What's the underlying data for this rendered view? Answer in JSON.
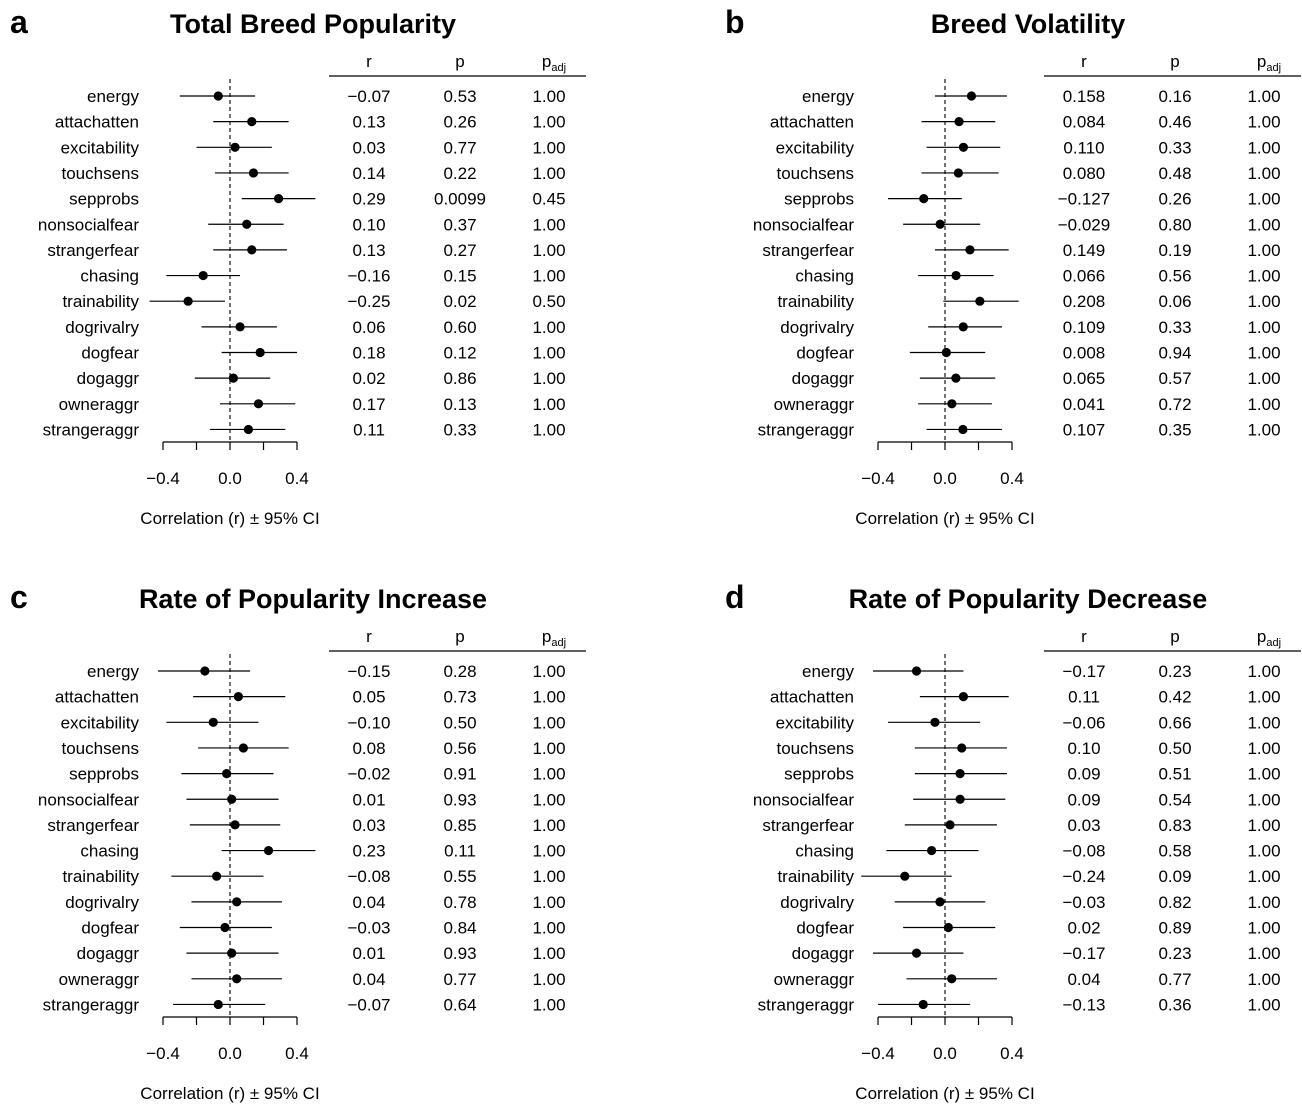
{
  "chart_data": [
    {
      "type": "forest",
      "panel_letter": "a",
      "title": "Total Breed Popularity",
      "xlabel": "Correlation (r) ± 95% CI",
      "xlim": [
        -0.4,
        0.4
      ],
      "xticks": [
        "−0.4",
        "0.0",
        "0.4"
      ],
      "columns": [
        "r",
        "p",
        "p_adj"
      ],
      "headers": {
        "r": "r",
        "p": "p",
        "padj_main": "p",
        "padj_sub": "adj"
      },
      "rows": [
        {
          "label": "energy",
          "r": -0.07,
          "lo": -0.3,
          "hi": 0.15,
          "r_text": "−0.07",
          "p_text": "0.53",
          "padj_text": "1.00"
        },
        {
          "label": "attachatten",
          "r": 0.13,
          "lo": -0.1,
          "hi": 0.35,
          "r_text": "0.13",
          "p_text": "0.26",
          "padj_text": "1.00"
        },
        {
          "label": "excitability",
          "r": 0.03,
          "lo": -0.2,
          "hi": 0.25,
          "r_text": "0.03",
          "p_text": "0.77",
          "padj_text": "1.00"
        },
        {
          "label": "touchsens",
          "r": 0.14,
          "lo": -0.09,
          "hi": 0.35,
          "r_text": "0.14",
          "p_text": "0.22",
          "padj_text": "1.00"
        },
        {
          "label": "sepprobs",
          "r": 0.29,
          "lo": 0.07,
          "hi": 0.51,
          "r_text": "0.29",
          "p_text": "0.0099",
          "padj_text": "0.45"
        },
        {
          "label": "nonsocialfear",
          "r": 0.1,
          "lo": -0.13,
          "hi": 0.32,
          "r_text": "0.10",
          "p_text": "0.37",
          "padj_text": "1.00"
        },
        {
          "label": "strangerfear",
          "r": 0.13,
          "lo": -0.1,
          "hi": 0.34,
          "r_text": "0.13",
          "p_text": "0.27",
          "padj_text": "1.00"
        },
        {
          "label": "chasing",
          "r": -0.16,
          "lo": -0.38,
          "hi": 0.06,
          "r_text": "−0.16",
          "p_text": "0.15",
          "padj_text": "1.00"
        },
        {
          "label": "trainability",
          "r": -0.25,
          "lo": -0.48,
          "hi": -0.03,
          "r_text": "−0.25",
          "p_text": "0.02",
          "padj_text": "0.50"
        },
        {
          "label": "dogrivalry",
          "r": 0.06,
          "lo": -0.17,
          "hi": 0.28,
          "r_text": "0.06",
          "p_text": "0.60",
          "padj_text": "1.00"
        },
        {
          "label": "dogfear",
          "r": 0.18,
          "lo": -0.05,
          "hi": 0.4,
          "r_text": "0.18",
          "p_text": "0.12",
          "padj_text": "1.00"
        },
        {
          "label": "dogaggr",
          "r": 0.02,
          "lo": -0.21,
          "hi": 0.24,
          "r_text": "0.02",
          "p_text": "0.86",
          "padj_text": "1.00"
        },
        {
          "label": "owneraggr",
          "r": 0.17,
          "lo": -0.06,
          "hi": 0.39,
          "r_text": "0.17",
          "p_text": "0.13",
          "padj_text": "1.00"
        },
        {
          "label": "strangeraggr",
          "r": 0.11,
          "lo": -0.12,
          "hi": 0.33,
          "r_text": "0.11",
          "p_text": "0.33",
          "padj_text": "1.00"
        }
      ]
    },
    {
      "type": "forest",
      "panel_letter": "b",
      "title": "Breed Volatility",
      "xlabel": "Correlation (r) ± 95% CI",
      "xlim": [
        -0.4,
        0.4
      ],
      "xticks": [
        "−0.4",
        "0.0",
        "0.4"
      ],
      "columns": [
        "r",
        "p",
        "p_adj"
      ],
      "headers": {
        "r": "r",
        "p": "p",
        "padj_main": "p",
        "padj_sub": "adj"
      },
      "rows": [
        {
          "label": "energy",
          "r": 0.158,
          "lo": -0.06,
          "hi": 0.37,
          "r_text": "0.158",
          "p_text": "0.16",
          "padj_text": "1.00"
        },
        {
          "label": "attachatten",
          "r": 0.084,
          "lo": -0.14,
          "hi": 0.3,
          "r_text": "0.084",
          "p_text": "0.46",
          "padj_text": "1.00"
        },
        {
          "label": "excitability",
          "r": 0.11,
          "lo": -0.11,
          "hi": 0.33,
          "r_text": "0.110",
          "p_text": "0.33",
          "padj_text": "1.00"
        },
        {
          "label": "touchsens",
          "r": 0.08,
          "lo": -0.14,
          "hi": 0.32,
          "r_text": "0.080",
          "p_text": "0.48",
          "padj_text": "1.00"
        },
        {
          "label": "sepprobs",
          "r": -0.127,
          "lo": -0.34,
          "hi": 0.1,
          "r_text": "−0.127",
          "p_text": "0.26",
          "padj_text": "1.00"
        },
        {
          "label": "nonsocialfear",
          "r": -0.029,
          "lo": -0.25,
          "hi": 0.21,
          "r_text": "−0.029",
          "p_text": "0.80",
          "padj_text": "1.00"
        },
        {
          "label": "strangerfear",
          "r": 0.149,
          "lo": -0.06,
          "hi": 0.38,
          "r_text": "0.149",
          "p_text": "0.19",
          "padj_text": "1.00"
        },
        {
          "label": "chasing",
          "r": 0.066,
          "lo": -0.16,
          "hi": 0.29,
          "r_text": "0.066",
          "p_text": "0.56",
          "padj_text": "1.00"
        },
        {
          "label": "trainability",
          "r": 0.208,
          "lo": -0.01,
          "hi": 0.44,
          "r_text": "0.208",
          "p_text": "0.06",
          "padj_text": "1.00"
        },
        {
          "label": "dogrivalry",
          "r": 0.109,
          "lo": -0.1,
          "hi": 0.34,
          "r_text": "0.109",
          "p_text": "0.33",
          "padj_text": "1.00"
        },
        {
          "label": "dogfear",
          "r": 0.008,
          "lo": -0.21,
          "hi": 0.24,
          "r_text": "0.008",
          "p_text": "0.94",
          "padj_text": "1.00"
        },
        {
          "label": "dogaggr",
          "r": 0.065,
          "lo": -0.15,
          "hi": 0.3,
          "r_text": "0.065",
          "p_text": "0.57",
          "padj_text": "1.00"
        },
        {
          "label": "owneraggr",
          "r": 0.041,
          "lo": -0.16,
          "hi": 0.28,
          "r_text": "0.041",
          "p_text": "0.72",
          "padj_text": "1.00"
        },
        {
          "label": "strangeraggr",
          "r": 0.107,
          "lo": -0.11,
          "hi": 0.34,
          "r_text": "0.107",
          "p_text": "0.35",
          "padj_text": "1.00"
        }
      ]
    },
    {
      "type": "forest",
      "panel_letter": "c",
      "title": "Rate of Popularity Increase",
      "xlabel": "Correlation (r) ± 95% CI",
      "xlim": [
        -0.4,
        0.4
      ],
      "xticks": [
        "−0.4",
        "0.0",
        "0.4"
      ],
      "columns": [
        "r",
        "p",
        "p_adj"
      ],
      "headers": {
        "r": "r",
        "p": "p",
        "padj_main": "p",
        "padj_sub": "adj"
      },
      "rows": [
        {
          "label": "energy",
          "r": -0.15,
          "lo": -0.43,
          "hi": 0.12,
          "r_text": "−0.15",
          "p_text": "0.28",
          "padj_text": "1.00"
        },
        {
          "label": "attachatten",
          "r": 0.05,
          "lo": -0.22,
          "hi": 0.33,
          "r_text": "0.05",
          "p_text": "0.73",
          "padj_text": "1.00"
        },
        {
          "label": "excitability",
          "r": -0.1,
          "lo": -0.38,
          "hi": 0.17,
          "r_text": "−0.10",
          "p_text": "0.50",
          "padj_text": "1.00"
        },
        {
          "label": "touchsens",
          "r": 0.08,
          "lo": -0.19,
          "hi": 0.35,
          "r_text": "0.08",
          "p_text": "0.56",
          "padj_text": "1.00"
        },
        {
          "label": "sepprobs",
          "r": -0.02,
          "lo": -0.29,
          "hi": 0.26,
          "r_text": "−0.02",
          "p_text": "0.91",
          "padj_text": "1.00"
        },
        {
          "label": "nonsocialfear",
          "r": 0.01,
          "lo": -0.26,
          "hi": 0.29,
          "r_text": "0.01",
          "p_text": "0.93",
          "padj_text": "1.00"
        },
        {
          "label": "strangerfear",
          "r": 0.03,
          "lo": -0.24,
          "hi": 0.3,
          "r_text": "0.03",
          "p_text": "0.85",
          "padj_text": "1.00"
        },
        {
          "label": "chasing",
          "r": 0.23,
          "lo": -0.05,
          "hi": 0.51,
          "r_text": "0.23",
          "p_text": "0.11",
          "padj_text": "1.00"
        },
        {
          "label": "trainability",
          "r": -0.08,
          "lo": -0.35,
          "hi": 0.2,
          "r_text": "−0.08",
          "p_text": "0.55",
          "padj_text": "1.00"
        },
        {
          "label": "dogrivalry",
          "r": 0.04,
          "lo": -0.23,
          "hi": 0.31,
          "r_text": "0.04",
          "p_text": "0.78",
          "padj_text": "1.00"
        },
        {
          "label": "dogfear",
          "r": -0.03,
          "lo": -0.3,
          "hi": 0.25,
          "r_text": "−0.03",
          "p_text": "0.84",
          "padj_text": "1.00"
        },
        {
          "label": "dogaggr",
          "r": 0.01,
          "lo": -0.26,
          "hi": 0.29,
          "r_text": "0.01",
          "p_text": "0.93",
          "padj_text": "1.00"
        },
        {
          "label": "owneraggr",
          "r": 0.04,
          "lo": -0.23,
          "hi": 0.31,
          "r_text": "0.04",
          "p_text": "0.77",
          "padj_text": "1.00"
        },
        {
          "label": "strangeraggr",
          "r": -0.07,
          "lo": -0.34,
          "hi": 0.21,
          "r_text": "−0.07",
          "p_text": "0.64",
          "padj_text": "1.00"
        }
      ]
    },
    {
      "type": "forest",
      "panel_letter": "d",
      "title": "Rate of Popularity Decrease",
      "xlabel": "Correlation (r) ± 95% CI",
      "xlim": [
        -0.4,
        0.4
      ],
      "xticks": [
        "−0.4",
        "0.0",
        "0.4"
      ],
      "columns": [
        "r",
        "p",
        "p_adj"
      ],
      "headers": {
        "r": "r",
        "p": "p",
        "padj_main": "p",
        "padj_sub": "adj"
      },
      "rows": [
        {
          "label": "energy",
          "r": -0.17,
          "lo": -0.43,
          "hi": 0.11,
          "r_text": "−0.17",
          "p_text": "0.23",
          "padj_text": "1.00"
        },
        {
          "label": "attachatten",
          "r": 0.11,
          "lo": -0.15,
          "hi": 0.38,
          "r_text": "0.11",
          "p_text": "0.42",
          "padj_text": "1.00"
        },
        {
          "label": "excitability",
          "r": -0.06,
          "lo": -0.34,
          "hi": 0.21,
          "r_text": "−0.06",
          "p_text": "0.66",
          "padj_text": "1.00"
        },
        {
          "label": "touchsens",
          "r": 0.1,
          "lo": -0.18,
          "hi": 0.37,
          "r_text": "0.10",
          "p_text": "0.50",
          "padj_text": "1.00"
        },
        {
          "label": "sepprobs",
          "r": 0.09,
          "lo": -0.18,
          "hi": 0.37,
          "r_text": "0.09",
          "p_text": "0.51",
          "padj_text": "1.00"
        },
        {
          "label": "nonsocialfear",
          "r": 0.09,
          "lo": -0.19,
          "hi": 0.36,
          "r_text": "0.09",
          "p_text": "0.54",
          "padj_text": "1.00"
        },
        {
          "label": "strangerfear",
          "r": 0.03,
          "lo": -0.24,
          "hi": 0.31,
          "r_text": "0.03",
          "p_text": "0.83",
          "padj_text": "1.00"
        },
        {
          "label": "chasing",
          "r": -0.08,
          "lo": -0.35,
          "hi": 0.2,
          "r_text": "−0.08",
          "p_text": "0.58",
          "padj_text": "1.00"
        },
        {
          "label": "trainability",
          "r": -0.24,
          "lo": -0.5,
          "hi": 0.04,
          "r_text": "−0.24",
          "p_text": "0.09",
          "padj_text": "1.00"
        },
        {
          "label": "dogrivalry",
          "r": -0.03,
          "lo": -0.3,
          "hi": 0.24,
          "r_text": "−0.03",
          "p_text": "0.82",
          "padj_text": "1.00"
        },
        {
          "label": "dogfear",
          "r": 0.02,
          "lo": -0.25,
          "hi": 0.3,
          "r_text": "0.02",
          "p_text": "0.89",
          "padj_text": "1.00"
        },
        {
          "label": "dogaggr",
          "r": -0.17,
          "lo": -0.43,
          "hi": 0.11,
          "r_text": "−0.17",
          "p_text": "0.23",
          "padj_text": "1.00"
        },
        {
          "label": "owneraggr",
          "r": 0.04,
          "lo": -0.23,
          "hi": 0.31,
          "r_text": "0.04",
          "p_text": "0.77",
          "padj_text": "1.00"
        },
        {
          "label": "strangeraggr",
          "r": -0.13,
          "lo": -0.4,
          "hi": 0.15,
          "r_text": "−0.13",
          "p_text": "0.36",
          "padj_text": "1.00"
        }
      ]
    }
  ]
}
